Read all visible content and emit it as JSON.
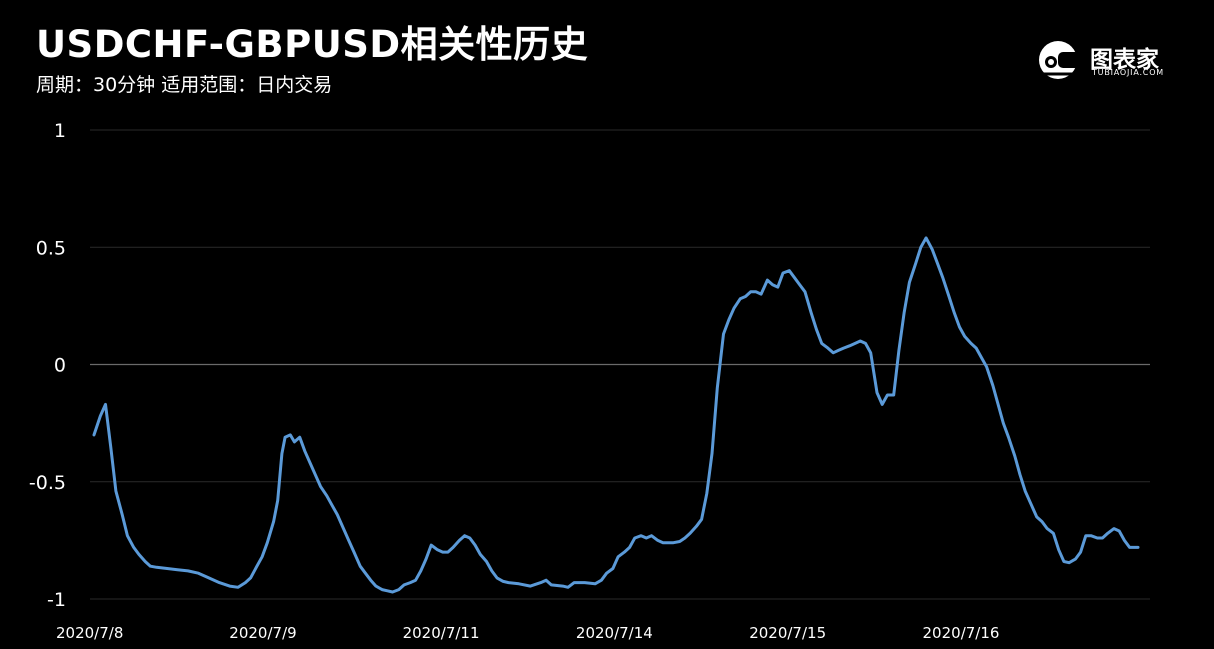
{
  "header": {
    "title": "USDCHF-GBPUSD相关性历史",
    "subtitle": "周期：30分钟 适用范围：日内交易"
  },
  "logo": {
    "name": "图表家",
    "sub": "TUBIAOJIA.COM",
    "icon": "helmet-logo-icon"
  },
  "colors": {
    "background": "#000000",
    "line": "#5b9ad8",
    "grid": "#2a2a2a",
    "zero_line": "#6a6a6a",
    "text": "#ffffff"
  },
  "chart_data": {
    "type": "line",
    "title": "USDCHF-GBPUSD相关性历史",
    "xlabel": "",
    "ylabel": "",
    "ylim": [
      -1,
      1
    ],
    "yticks": [
      1,
      0.5,
      0,
      -0.5,
      -1
    ],
    "ytick_labels": [
      "1",
      "0.5",
      "0",
      "-0.5",
      "-1"
    ],
    "xlim": [
      0,
      100
    ],
    "xticks": [
      {
        "x": 0,
        "label": "2020/7/8"
      },
      {
        "x": 16.6,
        "label": "2020/7/9"
      },
      {
        "x": 33.2,
        "label": "2020/7/11"
      },
      {
        "x": 49.8,
        "label": "2020/7/14"
      },
      {
        "x": 66.4,
        "label": "2020/7/15"
      },
      {
        "x": 83.0,
        "label": "2020/7/16"
      }
    ],
    "grid": true,
    "series": [
      {
        "name": "",
        "color": "#5b9ad8",
        "points": [
          [
            0.0,
            -0.3
          ],
          [
            0.6,
            -0.22
          ],
          [
            1.1,
            -0.17
          ],
          [
            1.6,
            -0.35
          ],
          [
            2.1,
            -0.54
          ],
          [
            2.7,
            -0.64
          ],
          [
            3.2,
            -0.73
          ],
          [
            3.8,
            -0.78
          ],
          [
            4.3,
            -0.81
          ],
          [
            4.9,
            -0.84
          ],
          [
            5.4,
            -0.86
          ],
          [
            6.0,
            -0.865
          ],
          [
            7.0,
            -0.87
          ],
          [
            8.0,
            -0.875
          ],
          [
            9.0,
            -0.88
          ],
          [
            10.0,
            -0.89
          ],
          [
            11.0,
            -0.91
          ],
          [
            12.0,
            -0.93
          ],
          [
            13.0,
            -0.945
          ],
          [
            13.8,
            -0.95
          ],
          [
            14.5,
            -0.93
          ],
          [
            15.0,
            -0.91
          ],
          [
            15.6,
            -0.86
          ],
          [
            16.1,
            -0.82
          ],
          [
            16.6,
            -0.76
          ],
          [
            17.2,
            -0.67
          ],
          [
            17.6,
            -0.58
          ],
          [
            18.0,
            -0.38
          ],
          [
            18.3,
            -0.31
          ],
          [
            18.8,
            -0.3
          ],
          [
            19.2,
            -0.33
          ],
          [
            19.7,
            -0.31
          ],
          [
            20.2,
            -0.37
          ],
          [
            20.7,
            -0.42
          ],
          [
            21.2,
            -0.47
          ],
          [
            21.7,
            -0.52
          ],
          [
            22.3,
            -0.56
          ],
          [
            22.8,
            -0.6
          ],
          [
            23.3,
            -0.64
          ],
          [
            23.9,
            -0.7
          ],
          [
            24.4,
            -0.75
          ],
          [
            24.9,
            -0.8
          ],
          [
            25.5,
            -0.86
          ],
          [
            26.0,
            -0.89
          ],
          [
            26.5,
            -0.92
          ],
          [
            27.0,
            -0.945
          ],
          [
            27.6,
            -0.96
          ],
          [
            28.1,
            -0.965
          ],
          [
            28.6,
            -0.97
          ],
          [
            29.2,
            -0.96
          ],
          [
            29.7,
            -0.94
          ],
          [
            30.3,
            -0.93
          ],
          [
            30.8,
            -0.92
          ],
          [
            31.3,
            -0.88
          ],
          [
            31.8,
            -0.83
          ],
          [
            32.3,
            -0.77
          ],
          [
            32.9,
            -0.79
          ],
          [
            33.4,
            -0.8
          ],
          [
            33.9,
            -0.8
          ],
          [
            34.4,
            -0.78
          ],
          [
            35.0,
            -0.75
          ],
          [
            35.5,
            -0.73
          ],
          [
            36.0,
            -0.74
          ],
          [
            36.5,
            -0.77
          ],
          [
            37.0,
            -0.81
          ],
          [
            37.6,
            -0.84
          ],
          [
            38.1,
            -0.88
          ],
          [
            38.6,
            -0.91
          ],
          [
            39.2,
            -0.925
          ],
          [
            39.7,
            -0.93
          ],
          [
            40.7,
            -0.935
          ],
          [
            41.8,
            -0.945
          ],
          [
            42.8,
            -0.93
          ],
          [
            43.3,
            -0.92
          ],
          [
            43.8,
            -0.94
          ],
          [
            44.9,
            -0.945
          ],
          [
            45.4,
            -0.95
          ],
          [
            46.0,
            -0.93
          ],
          [
            47.0,
            -0.93
          ],
          [
            48.0,
            -0.935
          ],
          [
            48.6,
            -0.92
          ],
          [
            49.1,
            -0.89
          ],
          [
            49.7,
            -0.87
          ],
          [
            50.2,
            -0.82
          ],
          [
            50.8,
            -0.8
          ],
          [
            51.3,
            -0.78
          ],
          [
            51.8,
            -0.74
          ],
          [
            52.4,
            -0.73
          ],
          [
            52.9,
            -0.74
          ],
          [
            53.4,
            -0.73
          ],
          [
            54.0,
            -0.75
          ],
          [
            54.5,
            -0.76
          ],
          [
            55.5,
            -0.76
          ],
          [
            56.1,
            -0.755
          ],
          [
            56.6,
            -0.74
          ],
          [
            57.1,
            -0.72
          ],
          [
            57.7,
            -0.69
          ],
          [
            58.2,
            -0.66
          ],
          [
            58.7,
            -0.55
          ],
          [
            59.2,
            -0.38
          ],
          [
            59.7,
            -0.1
          ],
          [
            60.3,
            0.13
          ],
          [
            60.8,
            0.19
          ],
          [
            61.3,
            0.24
          ],
          [
            61.9,
            0.28
          ],
          [
            62.4,
            0.29
          ],
          [
            62.9,
            0.31
          ],
          [
            63.4,
            0.31
          ],
          [
            63.9,
            0.3
          ],
          [
            64.5,
            0.36
          ],
          [
            65.0,
            0.34
          ],
          [
            65.5,
            0.33
          ],
          [
            66.0,
            0.39
          ],
          [
            66.6,
            0.4
          ],
          [
            67.1,
            0.37
          ],
          [
            67.6,
            0.34
          ],
          [
            68.1,
            0.31
          ],
          [
            68.7,
            0.22
          ],
          [
            69.2,
            0.15
          ],
          [
            69.7,
            0.09
          ],
          [
            70.3,
            0.07
          ],
          [
            70.8,
            0.05
          ],
          [
            71.3,
            0.06
          ],
          [
            71.8,
            0.07
          ],
          [
            72.4,
            0.08
          ],
          [
            72.9,
            0.09
          ],
          [
            73.4,
            0.1
          ],
          [
            73.9,
            0.09
          ],
          [
            74.4,
            0.05
          ],
          [
            75.0,
            -0.12
          ],
          [
            75.5,
            -0.17
          ],
          [
            76.0,
            -0.13
          ],
          [
            76.6,
            -0.13
          ],
          [
            77.1,
            0.06
          ],
          [
            77.6,
            0.22
          ],
          [
            78.1,
            0.35
          ],
          [
            78.7,
            0.43
          ],
          [
            79.2,
            0.5
          ],
          [
            79.7,
            0.54
          ],
          [
            80.3,
            0.49
          ],
          [
            80.8,
            0.43
          ],
          [
            81.3,
            0.37
          ],
          [
            81.9,
            0.29
          ],
          [
            82.4,
            0.22
          ],
          [
            82.9,
            0.16
          ],
          [
            83.4,
            0.12
          ],
          [
            84.0,
            0.09
          ],
          [
            84.5,
            0.07
          ],
          [
            85.0,
            0.03
          ],
          [
            85.5,
            -0.01
          ],
          [
            86.1,
            -0.09
          ],
          [
            86.6,
            -0.17
          ],
          [
            87.1,
            -0.25
          ],
          [
            87.6,
            -0.31
          ],
          [
            88.2,
            -0.39
          ],
          [
            88.7,
            -0.47
          ],
          [
            89.2,
            -0.54
          ],
          [
            89.8,
            -0.6
          ],
          [
            90.3,
            -0.65
          ],
          [
            90.8,
            -0.67
          ],
          [
            91.3,
            -0.7
          ],
          [
            91.9,
            -0.72
          ],
          [
            92.4,
            -0.79
          ],
          [
            92.9,
            -0.84
          ],
          [
            93.4,
            -0.845
          ],
          [
            94.0,
            -0.83
          ],
          [
            94.5,
            -0.8
          ],
          [
            95.0,
            -0.73
          ],
          [
            95.5,
            -0.73
          ],
          [
            96.1,
            -0.74
          ],
          [
            96.6,
            -0.74
          ],
          [
            97.1,
            -0.72
          ],
          [
            97.7,
            -0.7
          ],
          [
            98.2,
            -0.71
          ],
          [
            98.7,
            -0.75
          ],
          [
            99.2,
            -0.78
          ],
          [
            99.7,
            -0.78
          ],
          [
            100.0,
            -0.78
          ]
        ]
      }
    ]
  }
}
